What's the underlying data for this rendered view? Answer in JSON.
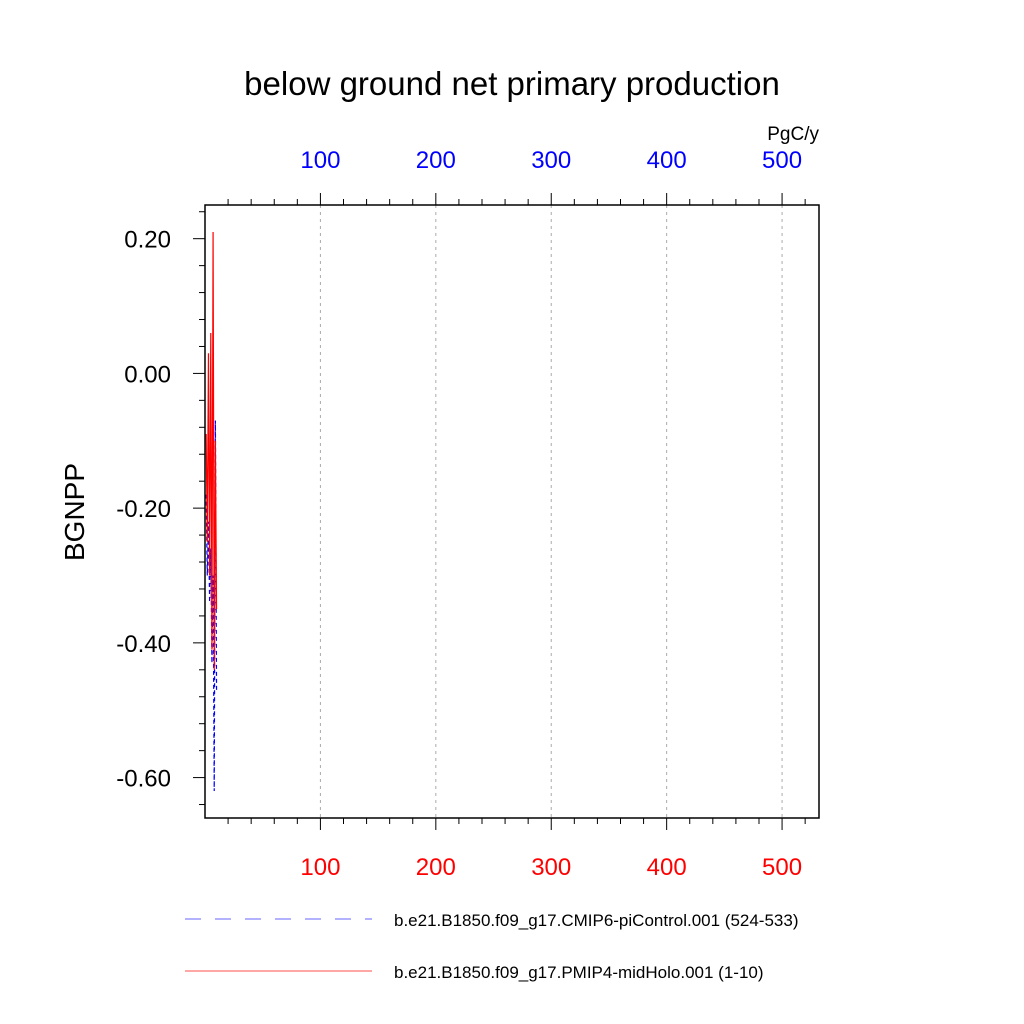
{
  "chart_data": {
    "type": "line",
    "title": "below ground net primary production",
    "ylabel": "BGNPP",
    "units": "PgC/y",
    "ylim": [
      -0.66,
      0.25
    ],
    "yticks": [
      {
        "value": 0.2,
        "label": "0.20"
      },
      {
        "value": 0.0,
        "label": "0.00"
      },
      {
        "value": -0.2,
        "label": "-0.20"
      },
      {
        "value": -0.4,
        "label": "-0.40"
      },
      {
        "value": -0.6,
        "label": "-0.60"
      }
    ],
    "yminor_step": 0.04,
    "x_top": {
      "color": "#0000ff",
      "range": [
        0,
        532
      ],
      "ticks": [
        {
          "value": 100,
          "label": "100"
        },
        {
          "value": 200,
          "label": "200"
        },
        {
          "value": 300,
          "label": "300"
        },
        {
          "value": 400,
          "label": "400"
        },
        {
          "value": 500,
          "label": "500"
        }
      ]
    },
    "x_bottom": {
      "color": "#ff0000",
      "range": [
        0,
        532
      ],
      "ticks": [
        {
          "value": 100,
          "label": "100"
        },
        {
          "value": 200,
          "label": "200"
        },
        {
          "value": 300,
          "label": "300"
        },
        {
          "value": 400,
          "label": "400"
        },
        {
          "value": 500,
          "label": "500"
        }
      ]
    },
    "xminor_step": 20,
    "grid": "vertical dashed at major x ticks",
    "series": [
      {
        "name": "b.e21.B1850.f09_g17.CMIP6-piControl.001 (524-533)",
        "color": "#0000ff",
        "dash": "dashed",
        "x": [
          1,
          2,
          3,
          4,
          5,
          6,
          7,
          8,
          9,
          10
        ],
        "y": [
          -0.18,
          -0.3,
          -0.22,
          -0.34,
          -0.26,
          -0.43,
          -0.3,
          -0.62,
          -0.07,
          -0.47
        ]
      },
      {
        "name": "b.e21.B1850.f09_g17.PMIP4-midHolo.001 (1-10)",
        "color": "#ff0000",
        "dash": "solid",
        "x": [
          1,
          2,
          3,
          4,
          5,
          6,
          7,
          8,
          9,
          10
        ],
        "y": [
          -0.09,
          -0.25,
          0.03,
          -0.3,
          0.06,
          -0.41,
          0.21,
          -0.44,
          -0.1,
          -0.35
        ]
      }
    ],
    "legend_position": "bottom"
  }
}
